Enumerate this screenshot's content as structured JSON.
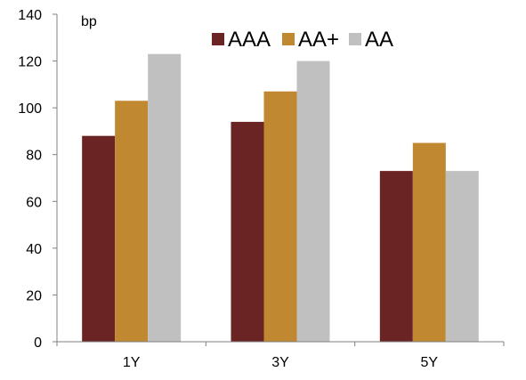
{
  "chart_data": {
    "type": "bar",
    "ylabel": "bp",
    "ylim": [
      0,
      140
    ],
    "yticks": [
      0,
      20,
      40,
      60,
      80,
      100,
      120,
      140
    ],
    "categories": [
      "1Y",
      "3Y",
      "5Y"
    ],
    "series": [
      {
        "name": "AAA",
        "color": "#6B2424",
        "values": [
          88,
          94,
          73
        ]
      },
      {
        "name": "AA+",
        "color": "#C08830",
        "values": [
          103,
          107,
          85
        ]
      },
      {
        "name": "AA",
        "color": "#C0C0C0",
        "values": [
          123,
          120,
          73
        ]
      }
    ],
    "grid": false,
    "legend": "top-right"
  }
}
